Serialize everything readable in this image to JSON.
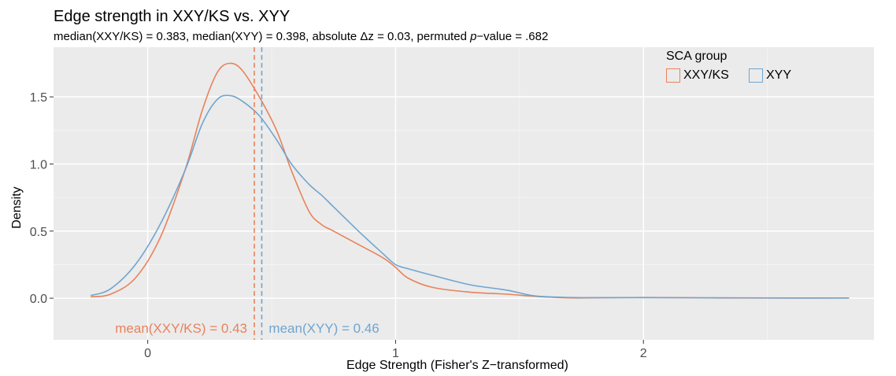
{
  "chart_data": {
    "type": "line",
    "title": "Edge strength in XXY/KS vs. XYY",
    "subtitle": {
      "part1": "median(XXY/KS) = 0.383, median(XYY) = 0.398, absolute Δz = 0.03, permuted ",
      "p": "p",
      "part2": "−value = .682"
    },
    "xlabel": "Edge Strength (Fisher's Z−transformed)",
    "ylabel": "Density",
    "xlim": [
      -0.38,
      2.93
    ],
    "ylim": [
      -0.31,
      1.87
    ],
    "xticks": [
      0,
      1,
      2
    ],
    "yticks": [
      0.0,
      0.5,
      1.0,
      1.5
    ],
    "ytick_labels": [
      "0.0",
      "0.5",
      "1.0",
      "1.5"
    ],
    "grid": true,
    "legend": {
      "title": "SCA group",
      "placement": "top-right"
    },
    "series": [
      {
        "name": "XXY/KS",
        "color": "#E8825C",
        "x": [
          -0.23,
          -0.15,
          -0.05,
          0.05,
          0.15,
          0.22,
          0.28,
          0.33,
          0.38,
          0.45,
          0.52,
          0.58,
          0.65,
          0.7,
          0.75,
          0.85,
          0.95,
          1.0,
          1.05,
          1.15,
          1.3,
          1.45,
          1.55,
          1.65,
          1.75,
          2.0,
          2.3,
          2.6,
          2.83
        ],
        "y": [
          0.01,
          0.03,
          0.15,
          0.45,
          0.95,
          1.4,
          1.68,
          1.75,
          1.7,
          1.5,
          1.25,
          0.95,
          0.65,
          0.55,
          0.5,
          0.4,
          0.3,
          0.23,
          0.15,
          0.08,
          0.045,
          0.03,
          0.015,
          0.005,
          0.002,
          0.005,
          0.002,
          0.001,
          0.002
        ]
      },
      {
        "name": "XYY",
        "color": "#6FA5CF",
        "x": [
          -0.23,
          -0.15,
          -0.05,
          0.05,
          0.15,
          0.22,
          0.28,
          0.33,
          0.38,
          0.45,
          0.52,
          0.58,
          0.65,
          0.7,
          0.75,
          0.85,
          0.95,
          1.0,
          1.05,
          1.15,
          1.3,
          1.45,
          1.55,
          1.65,
          1.75,
          2.0,
          2.3,
          2.6,
          2.83
        ],
        "y": [
          0.02,
          0.07,
          0.25,
          0.55,
          0.95,
          1.3,
          1.48,
          1.51,
          1.47,
          1.36,
          1.18,
          1.0,
          0.85,
          0.77,
          0.68,
          0.5,
          0.33,
          0.25,
          0.22,
          0.17,
          0.1,
          0.06,
          0.02,
          0.008,
          0.004,
          0.004,
          0.003,
          0.002,
          0.002
        ]
      }
    ],
    "vlines": [
      {
        "x": 0.43,
        "color": "#E8825C",
        "label": "mean(XXY/KS) = 0.43"
      },
      {
        "x": 0.46,
        "color": "#6FA5CF",
        "label": "mean(XYY) = 0.46"
      }
    ]
  }
}
